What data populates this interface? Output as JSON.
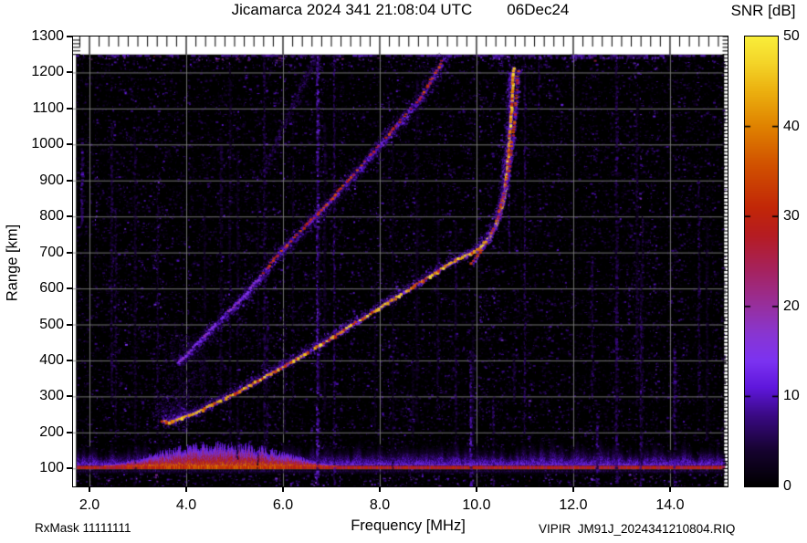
{
  "header": {
    "title": "Jicamarca 2024 341 21:08:04 UTC",
    "date": "06Dec24",
    "colorbar_title": "SNR [dB]"
  },
  "footer": {
    "rx_mask": "RxMask 11111111",
    "file_id": "VIPIR  JM91J_2024341210804.RIQ"
  },
  "axes": {
    "x_label": "Frequency [MHz]",
    "y_label": "Range [km]",
    "x_ticks": [
      {
        "value": 2,
        "label": "2.0"
      },
      {
        "value": 4,
        "label": "4.0"
      },
      {
        "value": 6,
        "label": "6.0"
      },
      {
        "value": 8,
        "label": "8.0"
      },
      {
        "value": 10,
        "label": "10.0"
      },
      {
        "value": 12,
        "label": "12.0"
      },
      {
        "value": 14,
        "label": "14.0"
      }
    ],
    "y_ticks": [
      {
        "value": 100,
        "label": "100"
      },
      {
        "value": 200,
        "label": "200"
      },
      {
        "value": 300,
        "label": "300"
      },
      {
        "value": 400,
        "label": "400"
      },
      {
        "value": 500,
        "label": "500"
      },
      {
        "value": 600,
        "label": "600"
      },
      {
        "value": 700,
        "label": "700"
      },
      {
        "value": 800,
        "label": "800"
      },
      {
        "value": 900,
        "label": "900"
      },
      {
        "value": 1000,
        "label": "1000"
      },
      {
        "value": 1100,
        "label": "1100"
      },
      {
        "value": 1200,
        "label": "1200"
      },
      {
        "value": 1300,
        "label": "1300"
      }
    ],
    "colorbar_ticks": [
      {
        "value": 0,
        "label": "0"
      },
      {
        "value": 10,
        "label": "10"
      },
      {
        "value": 20,
        "label": "20"
      },
      {
        "value": 30,
        "label": "30"
      },
      {
        "value": 40,
        "label": "40"
      },
      {
        "value": 50,
        "label": "50"
      }
    ]
  },
  "chart_data": {
    "type": "heatmap",
    "title": "Jicamarca 2024 341 21:08:04 UTC",
    "date": "06Dec24",
    "xlabel": "Frequency [MHz]",
    "ylabel": "Range [km]",
    "zlabel": "SNR [dB]",
    "xlim": [
      1.66,
      15.19
    ],
    "ylim": [
      50,
      1300
    ],
    "zlim": [
      0,
      50
    ],
    "grid": true,
    "grid_color": "#7c7c7c",
    "x_grid_step_mhz": 2,
    "y_grid_step_km": 100,
    "data_extent": {
      "f": [
        1.74,
        15.12
      ],
      "km": [
        55,
        1250
      ]
    },
    "palette_stops": [
      [
        0,
        "#000000"
      ],
      [
        4,
        "#16032f"
      ],
      [
        8,
        "#3b0a86"
      ],
      [
        11,
        "#5f17dc"
      ],
      [
        14,
        "#7c33f2"
      ],
      [
        17,
        "#8936d2"
      ],
      [
        20,
        "#9730a0"
      ],
      [
        24,
        "#a62360"
      ],
      [
        28,
        "#b61c22"
      ],
      [
        31,
        "#c22708"
      ],
      [
        36,
        "#d25400"
      ],
      [
        40,
        "#e08200"
      ],
      [
        44,
        "#ecb110"
      ],
      [
        47,
        "#f4d428"
      ],
      [
        50,
        "#f9ee3a"
      ]
    ],
    "traces": {
      "f_layer_o_mode": {
        "points": [
          [
            3.5,
            230
          ],
          [
            3.64,
            227
          ],
          [
            3.9,
            240
          ],
          [
            4.3,
            260
          ],
          [
            5.06,
            311
          ],
          [
            5.81,
            367
          ],
          [
            6.57,
            425
          ],
          [
            7.32,
            488
          ],
          [
            8.08,
            552
          ],
          [
            8.83,
            615
          ],
          [
            9.4,
            665
          ],
          [
            9.77,
            690
          ],
          [
            10.06,
            710
          ],
          [
            10.3,
            746
          ],
          [
            10.49,
            804
          ],
          [
            10.6,
            880
          ],
          [
            10.68,
            994
          ],
          [
            10.74,
            1121
          ],
          [
            10.77,
            1217
          ]
        ],
        "critical_freq_mhz": 10.8,
        "core_snr": [
          33,
          40,
          44,
          47
        ],
        "core_width": 3,
        "gap": 0.05,
        "halo": {
          "sigma": 5,
          "bias": -3,
          "count": 2600,
          "snr": [
            6,
            16
          ]
        },
        "inner": {
          "sigma": 2.2,
          "bias": -1,
          "count": 1300,
          "snr": [
            14,
            22
          ]
        }
      },
      "f_layer_x_mode": {
        "points": [
          [
            9.9,
            672
          ],
          [
            10.2,
            722
          ],
          [
            10.43,
            792
          ],
          [
            10.66,
            918
          ],
          [
            10.79,
            1070
          ],
          [
            10.87,
            1209
          ]
        ],
        "core_snr": [
          27,
          31,
          35
        ],
        "core_width": 2,
        "gap": 0.32,
        "halo": {
          "sigma": 2,
          "bias": 0,
          "count": 520,
          "snr": [
            9,
            16
          ]
        }
      },
      "second_hop": {
        "points": [
          [
            3.83,
            392
          ],
          [
            4.49,
            483
          ],
          [
            5.24,
            584
          ],
          [
            6.0,
            711
          ],
          [
            6.75,
            812
          ],
          [
            7.51,
            924
          ],
          [
            8.26,
            1040
          ],
          [
            8.83,
            1126
          ],
          [
            9.34,
            1243
          ]
        ],
        "core_snr": [
          27,
          31,
          34
        ],
        "core_width": 2.2,
        "gap": 0.28,
        "core_min_km": 640,
        "low_core_snr": [
          14,
          17
        ],
        "halo": {
          "sigma": 7,
          "bias": 0,
          "count": 2300,
          "snr": [
            4,
            13
          ]
        },
        "inner": {
          "sigma": 3,
          "bias": 0,
          "count": 1000,
          "snr": [
            9,
            17
          ]
        }
      },
      "third_streak": {
        "points": [
          [
            5.57,
            918
          ],
          [
            6.06,
            1070
          ],
          [
            6.66,
            1243
          ]
        ],
        "halo": {
          "sigma": 3.5,
          "bias": 0,
          "count": 380,
          "snr": [
            4,
            10
          ]
        }
      },
      "blobs": [
        {
          "f": 3.8,
          "km": 255,
          "sf": 0.45,
          "skm": 45,
          "count": 500,
          "snr": [
            4,
            12
          ]
        },
        {
          "f": 4.05,
          "km": 335,
          "sf": 0.5,
          "skm": 65,
          "count": 320,
          "snr": [
            3,
            9
          ]
        },
        {
          "f": 3.95,
          "km": 430,
          "sf": 0.42,
          "skm": 55,
          "count": 300,
          "snr": [
            3,
            9
          ]
        }
      ]
    },
    "e_region": {
      "line_km": 103,
      "line_snr": 28,
      "fuzz_max_km": 200,
      "fuzz_snr": 13,
      "wedge": {
        "f0": 2.3,
        "f1": 7.1,
        "top_km": 160,
        "snr": 35
      }
    },
    "rfi_stripes": [
      {
        "f": 1.85,
        "km": [
          780,
          990
        ],
        "snr": 10,
        "w": 3
      },
      {
        "f": 6.72,
        "km": [
          55,
          1245
        ],
        "snr": 13,
        "w": 3
      },
      {
        "f": 7.06,
        "km": [
          55,
          1245
        ],
        "snr": 9,
        "w": 2
      },
      {
        "f": 9.89,
        "km": [
          50,
          425
        ],
        "snr": 12,
        "w": 3
      },
      {
        "f": 10.35,
        "km": [
          50,
          300
        ],
        "snr": 8,
        "w": 2
      },
      {
        "f": 10.68,
        "km": [
          700,
          1245
        ],
        "snr": 11,
        "w": 2
      },
      {
        "f": 11.0,
        "km": [
          200,
          1245
        ],
        "snr": 8,
        "w": 2
      },
      {
        "f": 11.3,
        "km": [
          1100,
          1245
        ],
        "snr": 8,
        "w": 2
      },
      {
        "f": 12.4,
        "km": [
          300,
          700
        ],
        "snr": 7,
        "w": 2
      },
      {
        "f": 12.5,
        "km": [
          50,
          250
        ],
        "snr": 10,
        "w": 3
      },
      {
        "f": 12.9,
        "km": [
          55,
          1245
        ],
        "snr": 8,
        "w": 3
      },
      {
        "f": 13.4,
        "km": [
          50,
          640
        ],
        "snr": 8,
        "w": 2
      },
      {
        "f": 14.1,
        "km": [
          50,
          440
        ],
        "snr": 9,
        "w": 3
      },
      {
        "f": 14.6,
        "km": [
          300,
          900
        ],
        "snr": 7,
        "w": 2
      }
    ],
    "ceiling_line": {
      "km": 1243,
      "f0": 10.28,
      "f1": 13.85,
      "snr": 12
    },
    "noise": {
      "seed": 1337,
      "speckle_count": 34000,
      "snr_max": 9,
      "faint_columns": 26
    }
  }
}
